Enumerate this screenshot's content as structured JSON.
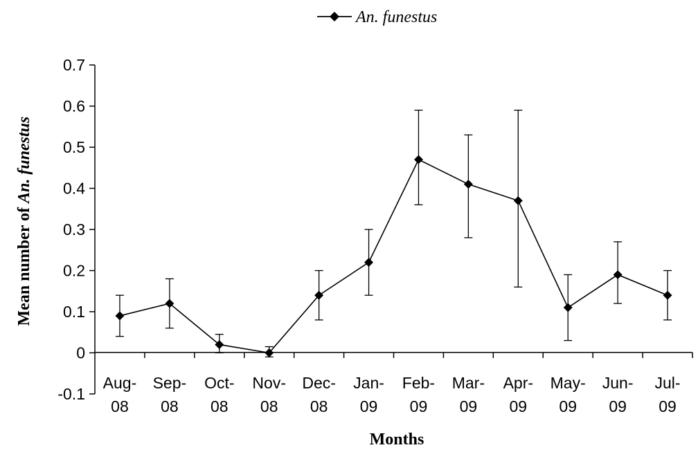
{
  "chart_data": {
    "type": "line",
    "title": "",
    "xlabel": "Months",
    "ylabel_prefix": "Mean number of ",
    "ylabel_species": "An. funestus",
    "categories": [
      [
        "Aug-",
        "08"
      ],
      [
        "Sep-",
        "08"
      ],
      [
        "Oct-",
        "08"
      ],
      [
        "Nov-",
        "08"
      ],
      [
        "Dec-",
        "08"
      ],
      [
        "Jan-",
        "09"
      ],
      [
        "Feb-",
        "09"
      ],
      [
        "Mar-",
        "09"
      ],
      [
        "Apr-",
        "09"
      ],
      [
        "May-",
        "09"
      ],
      [
        "Jun-",
        "09"
      ],
      [
        "Jul-",
        "09"
      ]
    ],
    "ylim": [
      -0.1,
      0.7
    ],
    "yticks": [
      -0.1,
      0,
      0.1,
      0.2,
      0.3,
      0.4,
      0.5,
      0.6,
      0.7
    ],
    "ytick_labels": [
      "-0.1",
      "0",
      "0.1",
      "0.2",
      "0.3",
      "0.4",
      "0.5",
      "0.6",
      "0.7"
    ],
    "grid": false,
    "legend_position": "top-center",
    "series": [
      {
        "name": "An. funestus",
        "color": "#000000",
        "marker": "diamond",
        "values": [
          0.09,
          0.12,
          0.02,
          0.0,
          0.14,
          0.22,
          0.47,
          0.41,
          0.37,
          0.11,
          0.19,
          0.14
        ],
        "error_low": [
          0.04,
          0.06,
          0.0,
          -0.01,
          0.08,
          0.14,
          0.36,
          0.28,
          0.16,
          0.03,
          0.12,
          0.08
        ],
        "error_high": [
          0.14,
          0.18,
          0.045,
          0.015,
          0.2,
          0.3,
          0.59,
          0.53,
          0.59,
          0.19,
          0.27,
          0.2
        ]
      }
    ]
  }
}
